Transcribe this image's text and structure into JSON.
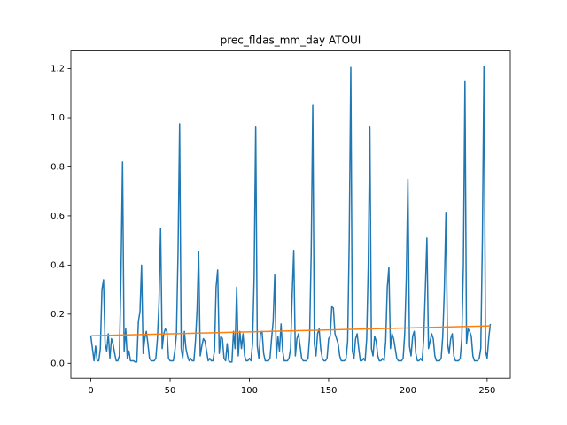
{
  "chart_data": {
    "type": "line",
    "title": "prec_fldas_mm_day ATOUI",
    "x": [
      0,
      1,
      2,
      3,
      4,
      5,
      6,
      7,
      8,
      9,
      10,
      11,
      12,
      13,
      14,
      15,
      16,
      17,
      18,
      19,
      20,
      21,
      22,
      23,
      24,
      25,
      26,
      27,
      28,
      29,
      30,
      31,
      32,
      33,
      34,
      35,
      36,
      37,
      38,
      39,
      40,
      41,
      42,
      43,
      44,
      45,
      46,
      47,
      48,
      49,
      50,
      51,
      52,
      53,
      54,
      55,
      56,
      57,
      58,
      59,
      60,
      61,
      62,
      63,
      64,
      65,
      66,
      67,
      68,
      69,
      70,
      71,
      72,
      73,
      74,
      75,
      76,
      77,
      78,
      79,
      80,
      81,
      82,
      83,
      84,
      85,
      86,
      87,
      88,
      89,
      90,
      91,
      92,
      93,
      94,
      95,
      96,
      97,
      98,
      99,
      100,
      101,
      102,
      103,
      104,
      105,
      106,
      107,
      108,
      109,
      110,
      111,
      112,
      113,
      114,
      115,
      116,
      117,
      118,
      119,
      120,
      121,
      122,
      123,
      124,
      125,
      126,
      127,
      128,
      129,
      130,
      131,
      132,
      133,
      134,
      135,
      136,
      137,
      138,
      139,
      140,
      141,
      142,
      143,
      144,
      145,
      146,
      147,
      148,
      149,
      150,
      151,
      152,
      153,
      154,
      155,
      156,
      157,
      158,
      159,
      160,
      161,
      162,
      163,
      164,
      165,
      166,
      167,
      168,
      169,
      170,
      171,
      172,
      173,
      174,
      175,
      176,
      177,
      178,
      179,
      180,
      181,
      182,
      183,
      184,
      185,
      186,
      187,
      188,
      189,
      190,
      191,
      192,
      193,
      194,
      195,
      196,
      197,
      198,
      199,
      200,
      201,
      202,
      203,
      204,
      205,
      206,
      207,
      208,
      209,
      210,
      211,
      212,
      213,
      214,
      215,
      216,
      217,
      218,
      219,
      220,
      221,
      222,
      223,
      224,
      225,
      226,
      227,
      228,
      229,
      230,
      231,
      232,
      233,
      234,
      235,
      236,
      237,
      238,
      239,
      240,
      241,
      242,
      243,
      244,
      245,
      246,
      247,
      248,
      249,
      250,
      251,
      252
    ],
    "series": [
      {
        "color": "#1f77b4",
        "values": [
          0.11,
          0.06,
          0.01,
          0.07,
          0.01,
          0.01,
          0.06,
          0.3,
          0.34,
          0.08,
          0.05,
          0.12,
          0.02,
          0.1,
          0.08,
          0.04,
          0.01,
          0.01,
          0.03,
          0.35,
          0.82,
          0.05,
          0.14,
          0.02,
          0.05,
          0.01,
          0.01,
          0.01,
          0.005,
          0.005,
          0.17,
          0.21,
          0.4,
          0.04,
          0.1,
          0.13,
          0.08,
          0.02,
          0.01,
          0.01,
          0.01,
          0.02,
          0.1,
          0.25,
          0.55,
          0.06,
          0.12,
          0.14,
          0.13,
          0.02,
          0.01,
          0.01,
          0.01,
          0.05,
          0.12,
          0.45,
          0.975,
          0.06,
          0.02,
          0.13,
          0.06,
          0.03,
          0.01,
          0.02,
          0.01,
          0.01,
          0.09,
          0.22,
          0.455,
          0.03,
          0.07,
          0.1,
          0.09,
          0.05,
          0.01,
          0.02,
          0.01,
          0.01,
          0.05,
          0.31,
          0.38,
          0.04,
          0.11,
          0.1,
          0.02,
          0.01,
          0.08,
          0.01,
          0.005,
          0.005,
          0.13,
          0.06,
          0.31,
          0.03,
          0.13,
          0.06,
          0.12,
          0.03,
          0.01,
          0.01,
          0.02,
          0.01,
          0.08,
          0.35,
          0.965,
          0.07,
          0.02,
          0.12,
          0.13,
          0.04,
          0.01,
          0.01,
          0.01,
          0.02,
          0.1,
          0.17,
          0.36,
          0.02,
          0.11,
          0.05,
          0.16,
          0.05,
          0.01,
          0.01,
          0.01,
          0.02,
          0.06,
          0.28,
          0.46,
          0.03,
          0.1,
          0.12,
          0.07,
          0.02,
          0.01,
          0.01,
          0.01,
          0.02,
          0.11,
          0.45,
          1.05,
          0.08,
          0.03,
          0.12,
          0.14,
          0.06,
          0.02,
          0.01,
          0.01,
          0.02,
          0.1,
          0.11,
          0.23,
          0.225,
          0.12,
          0.1,
          0.08,
          0.03,
          0.01,
          0.01,
          0.01,
          0.02,
          0.09,
          0.5,
          1.205,
          0.05,
          0.02,
          0.1,
          0.12,
          0.06,
          0.01,
          0.01,
          0.02,
          0.01,
          0.1,
          0.4,
          0.965,
          0.06,
          0.03,
          0.11,
          0.09,
          0.03,
          0.01,
          0.01,
          0.02,
          0.01,
          0.09,
          0.31,
          0.39,
          0.06,
          0.12,
          0.1,
          0.06,
          0.02,
          0.01,
          0.01,
          0.01,
          0.02,
          0.12,
          0.35,
          0.75,
          0.07,
          0.03,
          0.11,
          0.13,
          0.04,
          0.01,
          0.01,
          0.02,
          0.01,
          0.1,
          0.3,
          0.51,
          0.06,
          0.09,
          0.12,
          0.1,
          0.03,
          0.01,
          0.01,
          0.01,
          0.02,
          0.11,
          0.3,
          0.615,
          0.08,
          0.04,
          0.1,
          0.12,
          0.03,
          0.01,
          0.01,
          0.01,
          0.02,
          0.1,
          0.4,
          1.15,
          0.08,
          0.14,
          0.13,
          0.11,
          0.03,
          0.01,
          0.01,
          0.01,
          0.02,
          0.06,
          0.5,
          1.21,
          0.05,
          0.02,
          0.1,
          0.16
        ]
      },
      {
        "color": "#ff7f0e",
        "x": [
          0,
          252
        ],
        "values": [
          0.112,
          0.152
        ]
      }
    ],
    "xlim": [
      -12.6,
      264.6
    ],
    "ylim": [
      -0.061,
      1.272
    ],
    "xticks": [
      0,
      50,
      100,
      150,
      200,
      250
    ],
    "yticks": [
      {
        "value": 0,
        "label": "0.0"
      },
      0.2,
      0.4,
      0.6,
      0.8,
      {
        "value": 1,
        "label": "1.0"
      },
      1.2
    ]
  }
}
